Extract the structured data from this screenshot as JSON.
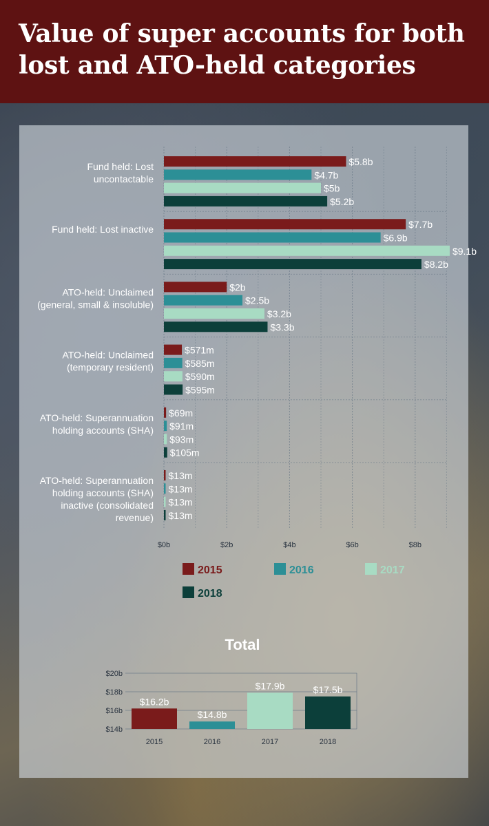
{
  "title": "Value of super accounts for both lost and ATO-held categories",
  "colors": {
    "header_bg": "#5e1212",
    "2015": "#7a1b1b",
    "2016": "#2c8f96",
    "2017": "#a8dbc3",
    "2018": "#0c3f3a"
  },
  "chart_data": [
    {
      "type": "bar",
      "orientation": "horizontal",
      "title": "",
      "xlabel": "",
      "ylabel": "",
      "xlim": [
        0,
        9
      ],
      "x_ticks": [
        0,
        2,
        4,
        6,
        8
      ],
      "x_tick_labels": [
        "$0b",
        "$2b",
        "$4b",
        "$6b",
        "$8b"
      ],
      "grid": true,
      "legend_position": "bottom",
      "categories": [
        [
          "Fund held: Lost",
          "uncontactable"
        ],
        [
          "Fund held: Lost inactive"
        ],
        [
          "ATO-held: Unclaimed",
          "(general, small & insoluble)"
        ],
        [
          "ATO-held: Unclaimed",
          "(temporary resident)"
        ],
        [
          "ATO-held: Superannuation",
          "holding accounts (SHA)"
        ],
        [
          "ATO-held: Superannuation",
          "holding accounts (SHA)",
          "inactive (consolidated",
          "revenue)"
        ]
      ],
      "series": [
        {
          "name": "2015",
          "color": "#7a1b1b",
          "values": [
            5.8,
            7.7,
            2.0,
            0.571,
            0.069,
            0.013
          ],
          "labels": [
            "$5.8b",
            "$7.7b",
            "$2b",
            "$571m",
            "$69m",
            "$13m"
          ]
        },
        {
          "name": "2016",
          "color": "#2c8f96",
          "values": [
            4.7,
            6.9,
            2.5,
            0.585,
            0.091,
            0.013
          ],
          "labels": [
            "$4.7b",
            "$6.9b",
            "$2.5b",
            "$585m",
            "$91m",
            "$13m"
          ]
        },
        {
          "name": "2017",
          "color": "#a8dbc3",
          "values": [
            5.0,
            9.1,
            3.2,
            0.59,
            0.093,
            0.013
          ],
          "labels": [
            "$5b",
            "$9.1b",
            "$3.2b",
            "$590m",
            "$93m",
            "$13m"
          ]
        },
        {
          "name": "2018",
          "color": "#0c3f3a",
          "values": [
            5.2,
            8.2,
            3.3,
            0.595,
            0.105,
            0.013
          ],
          "labels": [
            "$5.2b",
            "$8.2b",
            "$3.3b",
            "$595m",
            "$105m",
            "$13m"
          ]
        }
      ]
    },
    {
      "type": "bar",
      "orientation": "vertical",
      "title": "Total",
      "xlabel": "",
      "ylabel": "",
      "ylim": [
        14,
        20
      ],
      "y_ticks": [
        14,
        16,
        18,
        20
      ],
      "y_tick_labels": [
        "$14b",
        "$16b",
        "$18b",
        "$20b"
      ],
      "grid": true,
      "categories": [
        "2015",
        "2016",
        "2017",
        "2018"
      ],
      "values": [
        16.2,
        14.8,
        17.9,
        17.5
      ],
      "labels": [
        "$16.2b",
        "$14.8b",
        "$17.9b",
        "$17.5b"
      ],
      "colors": [
        "#7a1b1b",
        "#2c8f96",
        "#a8dbc3",
        "#0c3f3a"
      ]
    }
  ]
}
